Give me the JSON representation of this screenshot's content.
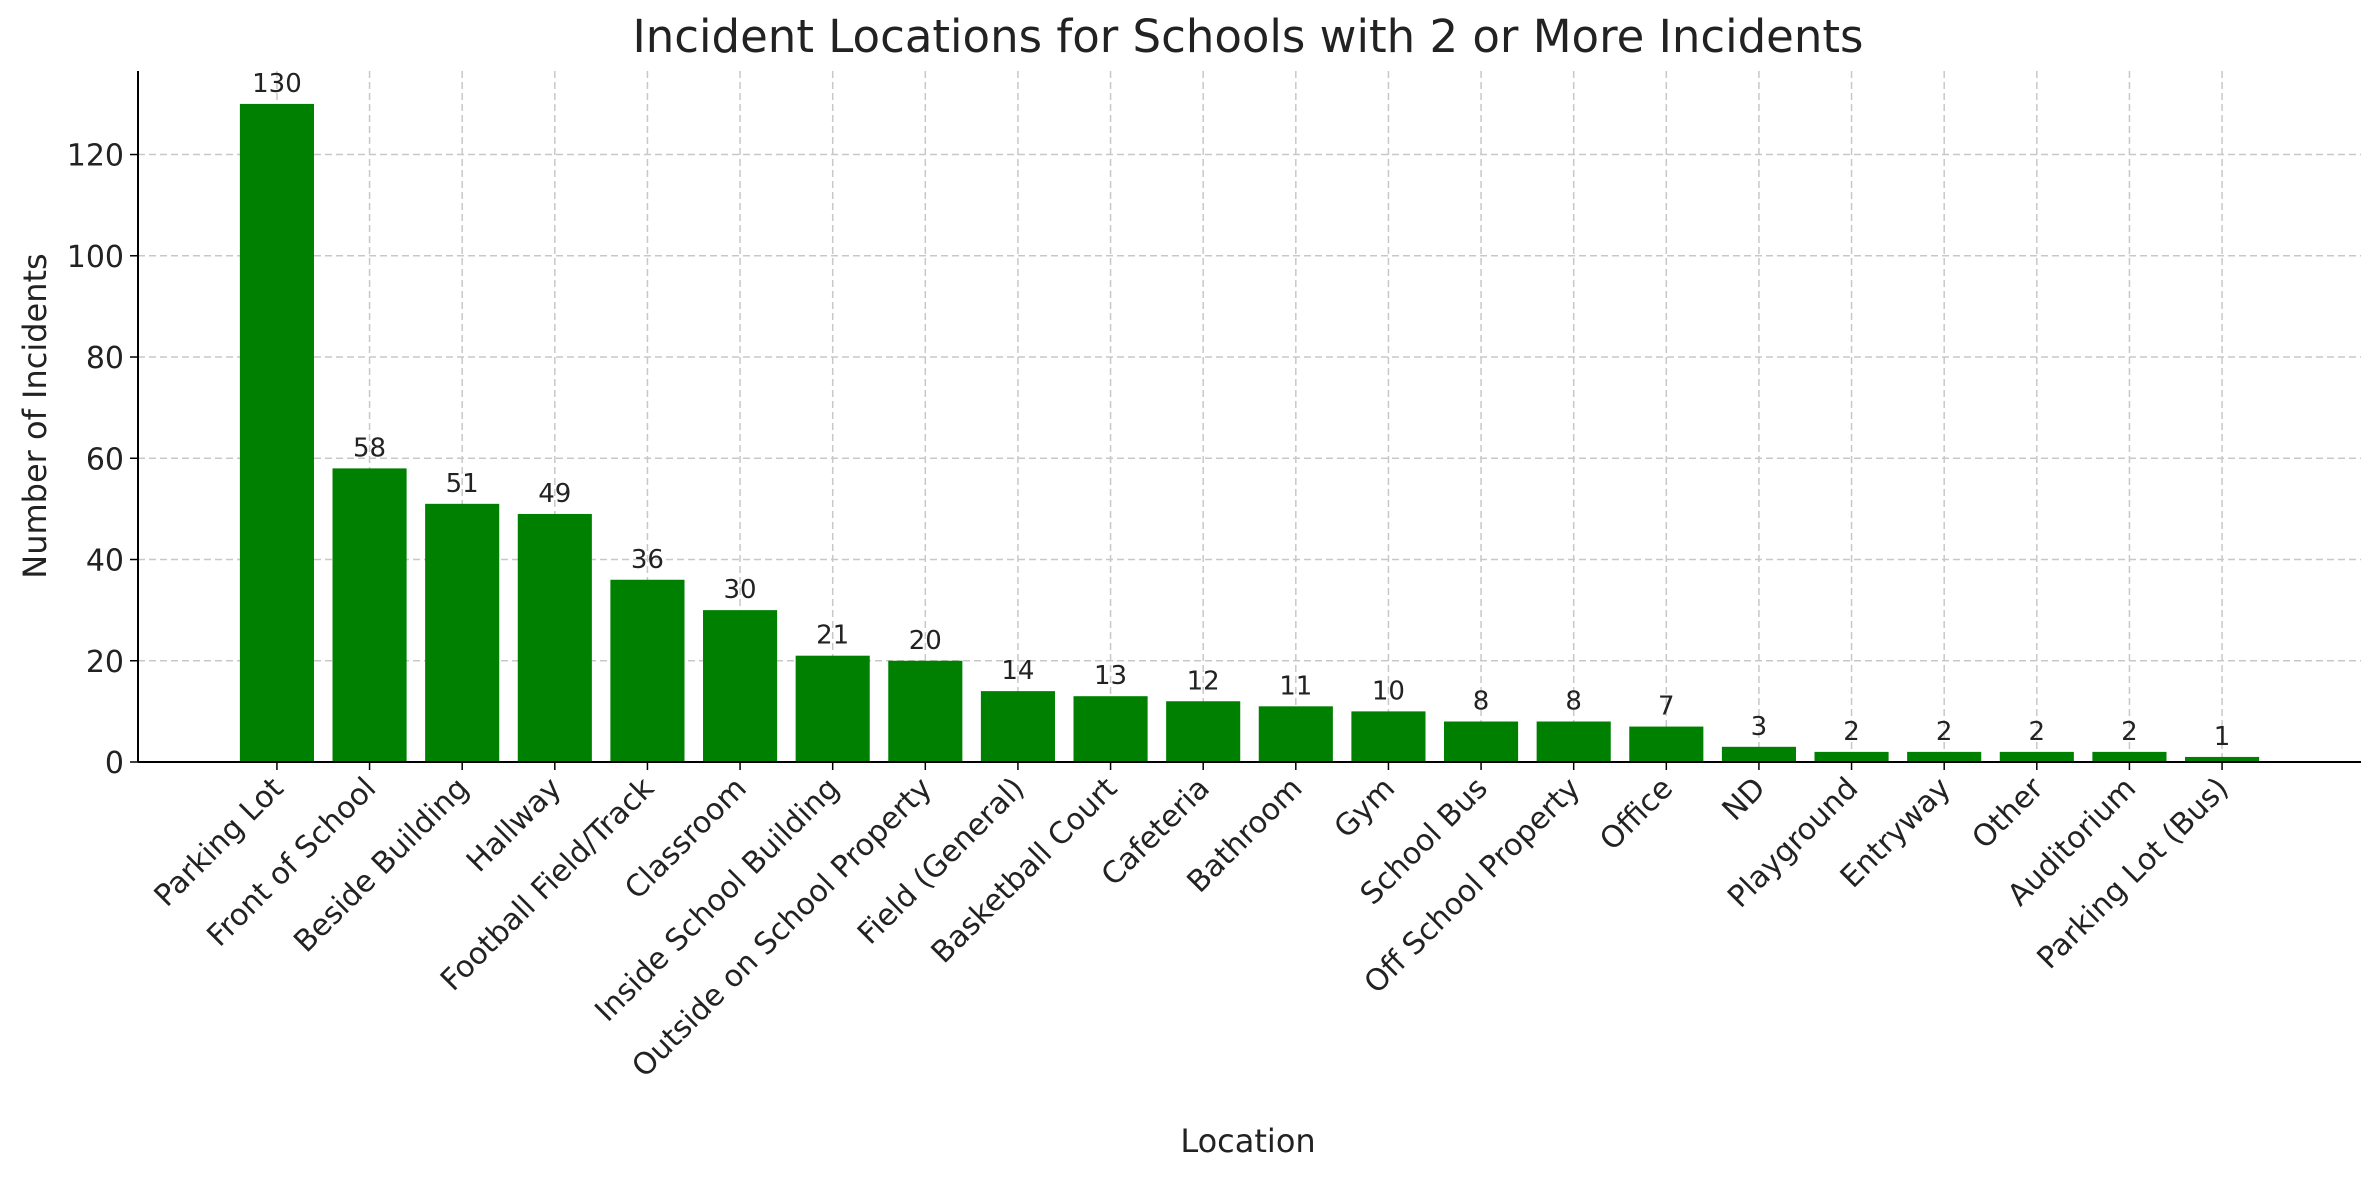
{
  "chart_data": {
    "type": "bar",
    "title": "Incident Locations for Schools with 2 or More Incidents",
    "xlabel": "Location",
    "ylabel": "Number of Incidents",
    "categories": [
      "Parking Lot",
      "Front of School",
      "Beside Building",
      "Hallway",
      "Football Field/Track",
      "Classroom",
      "Inside School Building",
      "Outside on School Property",
      "Field (General)",
      "Basketball Court",
      "Cafeteria",
      "Bathroom",
      "Gym",
      "School Bus",
      "Off School Property",
      "Office",
      "ND",
      "Playground",
      "Entryway",
      "Other",
      "Auditorium",
      "Parking Lot (Bus)"
    ],
    "values": [
      130,
      58,
      51,
      49,
      36,
      30,
      21,
      20,
      14,
      13,
      12,
      11,
      10,
      8,
      8,
      7,
      3,
      2,
      2,
      2,
      2,
      1
    ],
    "color": "#008000",
    "ylim": [
      0,
      136.5
    ],
    "yticks": [
      0,
      20,
      40,
      60,
      80,
      100,
      120
    ],
    "grid": true
  }
}
